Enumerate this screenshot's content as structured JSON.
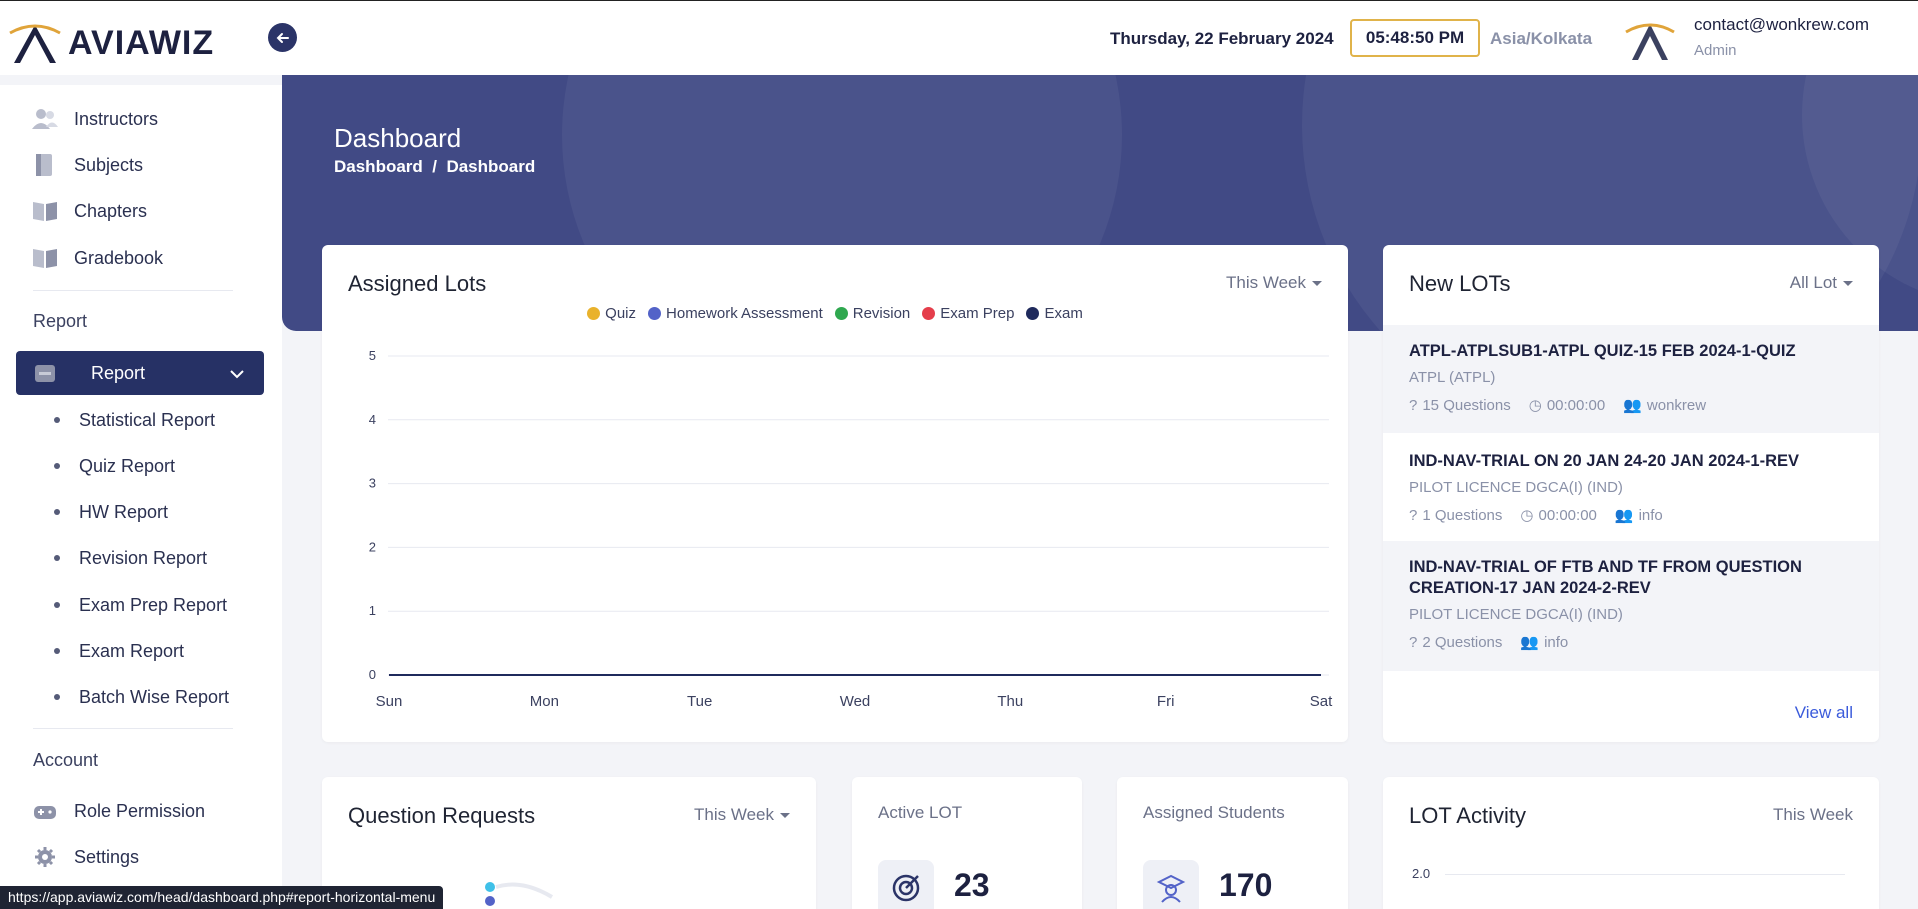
{
  "brand": {
    "name": "AVIAWIZ"
  },
  "header": {
    "date": "Thursday, 22 February 2024",
    "time": "05:48:50 PM",
    "timezone": "Asia/Kolkata",
    "user_email": "contact@wonkrew.com",
    "user_role": "Admin"
  },
  "sidebar": {
    "items": [
      {
        "label": "Instructors",
        "icon": "users-icon"
      },
      {
        "label": "Subjects",
        "icon": "book-icon"
      },
      {
        "label": "Chapters",
        "icon": "open-book-icon"
      },
      {
        "label": "Gradebook",
        "icon": "open-book-icon"
      }
    ],
    "report_section": "Report",
    "report_menu": "Report",
    "report_subitems": [
      "Statistical Report",
      "Quiz Report",
      "HW Report",
      "Revision Report",
      "Exam Prep Report",
      "Exam Report",
      "Batch Wise Report"
    ],
    "account_section": "Account",
    "account_items": [
      {
        "label": "Role Permission",
        "icon": "gamepad-icon"
      },
      {
        "label": "Settings",
        "icon": "gear-icon"
      }
    ]
  },
  "page": {
    "title": "Dashboard",
    "breadcrumb": [
      "Dashboard",
      "Dashboard"
    ]
  },
  "assigned_lots": {
    "title": "Assigned Lots",
    "filter": "This Week"
  },
  "chart_data": {
    "type": "line",
    "title": "Assigned Lots",
    "categories": [
      "Sun",
      "Mon",
      "Tue",
      "Wed",
      "Thu",
      "Fri",
      "Sat"
    ],
    "series": [
      {
        "name": "Quiz",
        "color": "#e9b22c",
        "values": [
          0,
          0,
          0,
          0,
          0,
          0,
          0
        ]
      },
      {
        "name": "Homework Assessment",
        "color": "#5363c8",
        "values": [
          0,
          0,
          0,
          0,
          0,
          0,
          0
        ]
      },
      {
        "name": "Revision",
        "color": "#2fa84f",
        "values": [
          0,
          0,
          0,
          0,
          0,
          0,
          0
        ]
      },
      {
        "name": "Exam Prep",
        "color": "#e53e4b",
        "values": [
          0,
          0,
          0,
          0,
          0,
          0,
          0
        ]
      },
      {
        "name": "Exam",
        "color": "#1f2a5c",
        "values": [
          0,
          0,
          0,
          0,
          0,
          0,
          0
        ]
      }
    ],
    "ylim": [
      0,
      5
    ],
    "yticks": [
      0,
      1,
      2,
      3,
      4,
      5
    ],
    "grid": true,
    "legend": "top-center"
  },
  "new_lots": {
    "title": "New LOTs",
    "filter": "All Lot",
    "items": [
      {
        "title": "ATPL-ATPLSUB1-ATPL QUIZ-15 FEB 2024-1-QUIZ",
        "course": "ATPL (ATPL)",
        "questions": "15 Questions",
        "duration": "00:00:00",
        "author": "wonkrew"
      },
      {
        "title": "IND-NAV-TRIAL ON 20 JAN 24-20 JAN 2024-1-REV",
        "course": "PILOT LICENCE DGCA(I) (IND)",
        "questions": "1 Questions",
        "duration": "00:00:00",
        "author": "info"
      },
      {
        "title": "IND-NAV-TRIAL OF FTB AND TF FROM QUESTION CREATION-17 JAN 2024-2-REV",
        "course": "PILOT LICENCE DGCA(I) (IND)",
        "questions": "2 Questions",
        "duration": "",
        "author": "info"
      }
    ],
    "view_all": "View all"
  },
  "question_requests": {
    "title": "Question Requests",
    "filter": "This Week"
  },
  "active_lot": {
    "label": "Active LOT",
    "value": "23"
  },
  "assigned_students": {
    "label": "Assigned Students",
    "value": "170"
  },
  "lot_activity": {
    "title": "LOT Activity",
    "filter": "This Week",
    "ytick_top": "2.0"
  },
  "status_bar": {
    "url": "https://app.aviawiz.com/head/dashboard.php#report-horizontal-menu"
  }
}
